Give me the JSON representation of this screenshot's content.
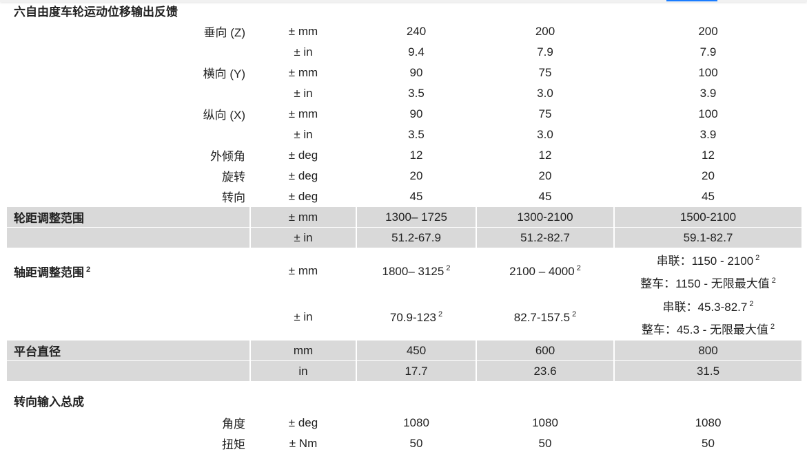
{
  "sections": [
    {
      "title": "六自由度车轮运动位移输出反馈",
      "rows": [
        {
          "label": "垂向 (Z)",
          "unit": "± mm",
          "values": [
            "240",
            "200",
            "200"
          ]
        },
        {
          "label": "",
          "unit": "± in",
          "values": [
            "9.4",
            "7.9",
            "7.9"
          ]
        },
        {
          "label": "横向 (Y)",
          "unit": "± mm",
          "values": [
            "90",
            "75",
            "100"
          ]
        },
        {
          "label": "",
          "unit": "± in",
          "values": [
            "3.5",
            "3.0",
            "3.9"
          ]
        },
        {
          "label": "纵向 (X)",
          "unit": "± mm",
          "values": [
            "90",
            "75",
            "100"
          ]
        },
        {
          "label": "",
          "unit": "± in",
          "values": [
            "3.5",
            "3.0",
            "3.9"
          ]
        },
        {
          "label": "外倾角",
          "unit": "± deg",
          "values": [
            "12",
            "12",
            "12"
          ]
        },
        {
          "label": "旋转",
          "unit": "± deg",
          "values": [
            "20",
            "20",
            "20"
          ]
        },
        {
          "label": "转向",
          "unit": "± deg",
          "values": [
            "45",
            "45",
            "45"
          ]
        }
      ]
    },
    {
      "title": "轮距调整范围",
      "rows": [
        {
          "unit": "± mm",
          "values": [
            "1300– 1725",
            "1300-2100",
            "1500-2100"
          ]
        },
        {
          "unit": "± in",
          "values": [
            "51.2-67.9",
            "51.2-82.7",
            "59.1-82.7"
          ]
        }
      ]
    },
    {
      "title": "轴距调整范围",
      "footnote": "2",
      "rows": [
        {
          "unit": "± mm",
          "values": [
            "1800– 3125",
            "2100 – 4000"
          ],
          "value_notes": [
            "2",
            "2"
          ],
          "col5": [
            "串联：1150 - 2100",
            "整车：1150 - 无限最大值"
          ],
          "col5_notes": [
            "2",
            "2"
          ]
        },
        {
          "unit": "± in",
          "values": [
            "70.9-123",
            "82.7-157.5"
          ],
          "value_notes": [
            "2",
            "2"
          ],
          "col5": [
            "串联：45.3-82.7",
            "整车：45.3 - 无限最大值"
          ],
          "col5_notes": [
            "2",
            "2"
          ]
        }
      ]
    },
    {
      "title": "平台直径",
      "rows": [
        {
          "unit": "mm",
          "values": [
            "450",
            "600",
            "800"
          ]
        },
        {
          "unit": "in",
          "values": [
            "17.7",
            "23.6",
            "31.5"
          ]
        }
      ]
    },
    {
      "title": "转向输入总成",
      "rows": [
        {
          "label": "角度",
          "unit": "± deg",
          "values": [
            "1080",
            "1080",
            "1080"
          ]
        },
        {
          "label": "扭矩",
          "unit": "± Nm",
          "values": [
            "50",
            "50",
            "50"
          ]
        }
      ]
    }
  ],
  "colors": {
    "row_gray": "#d9d9d9",
    "accent": "#1a7cff"
  }
}
